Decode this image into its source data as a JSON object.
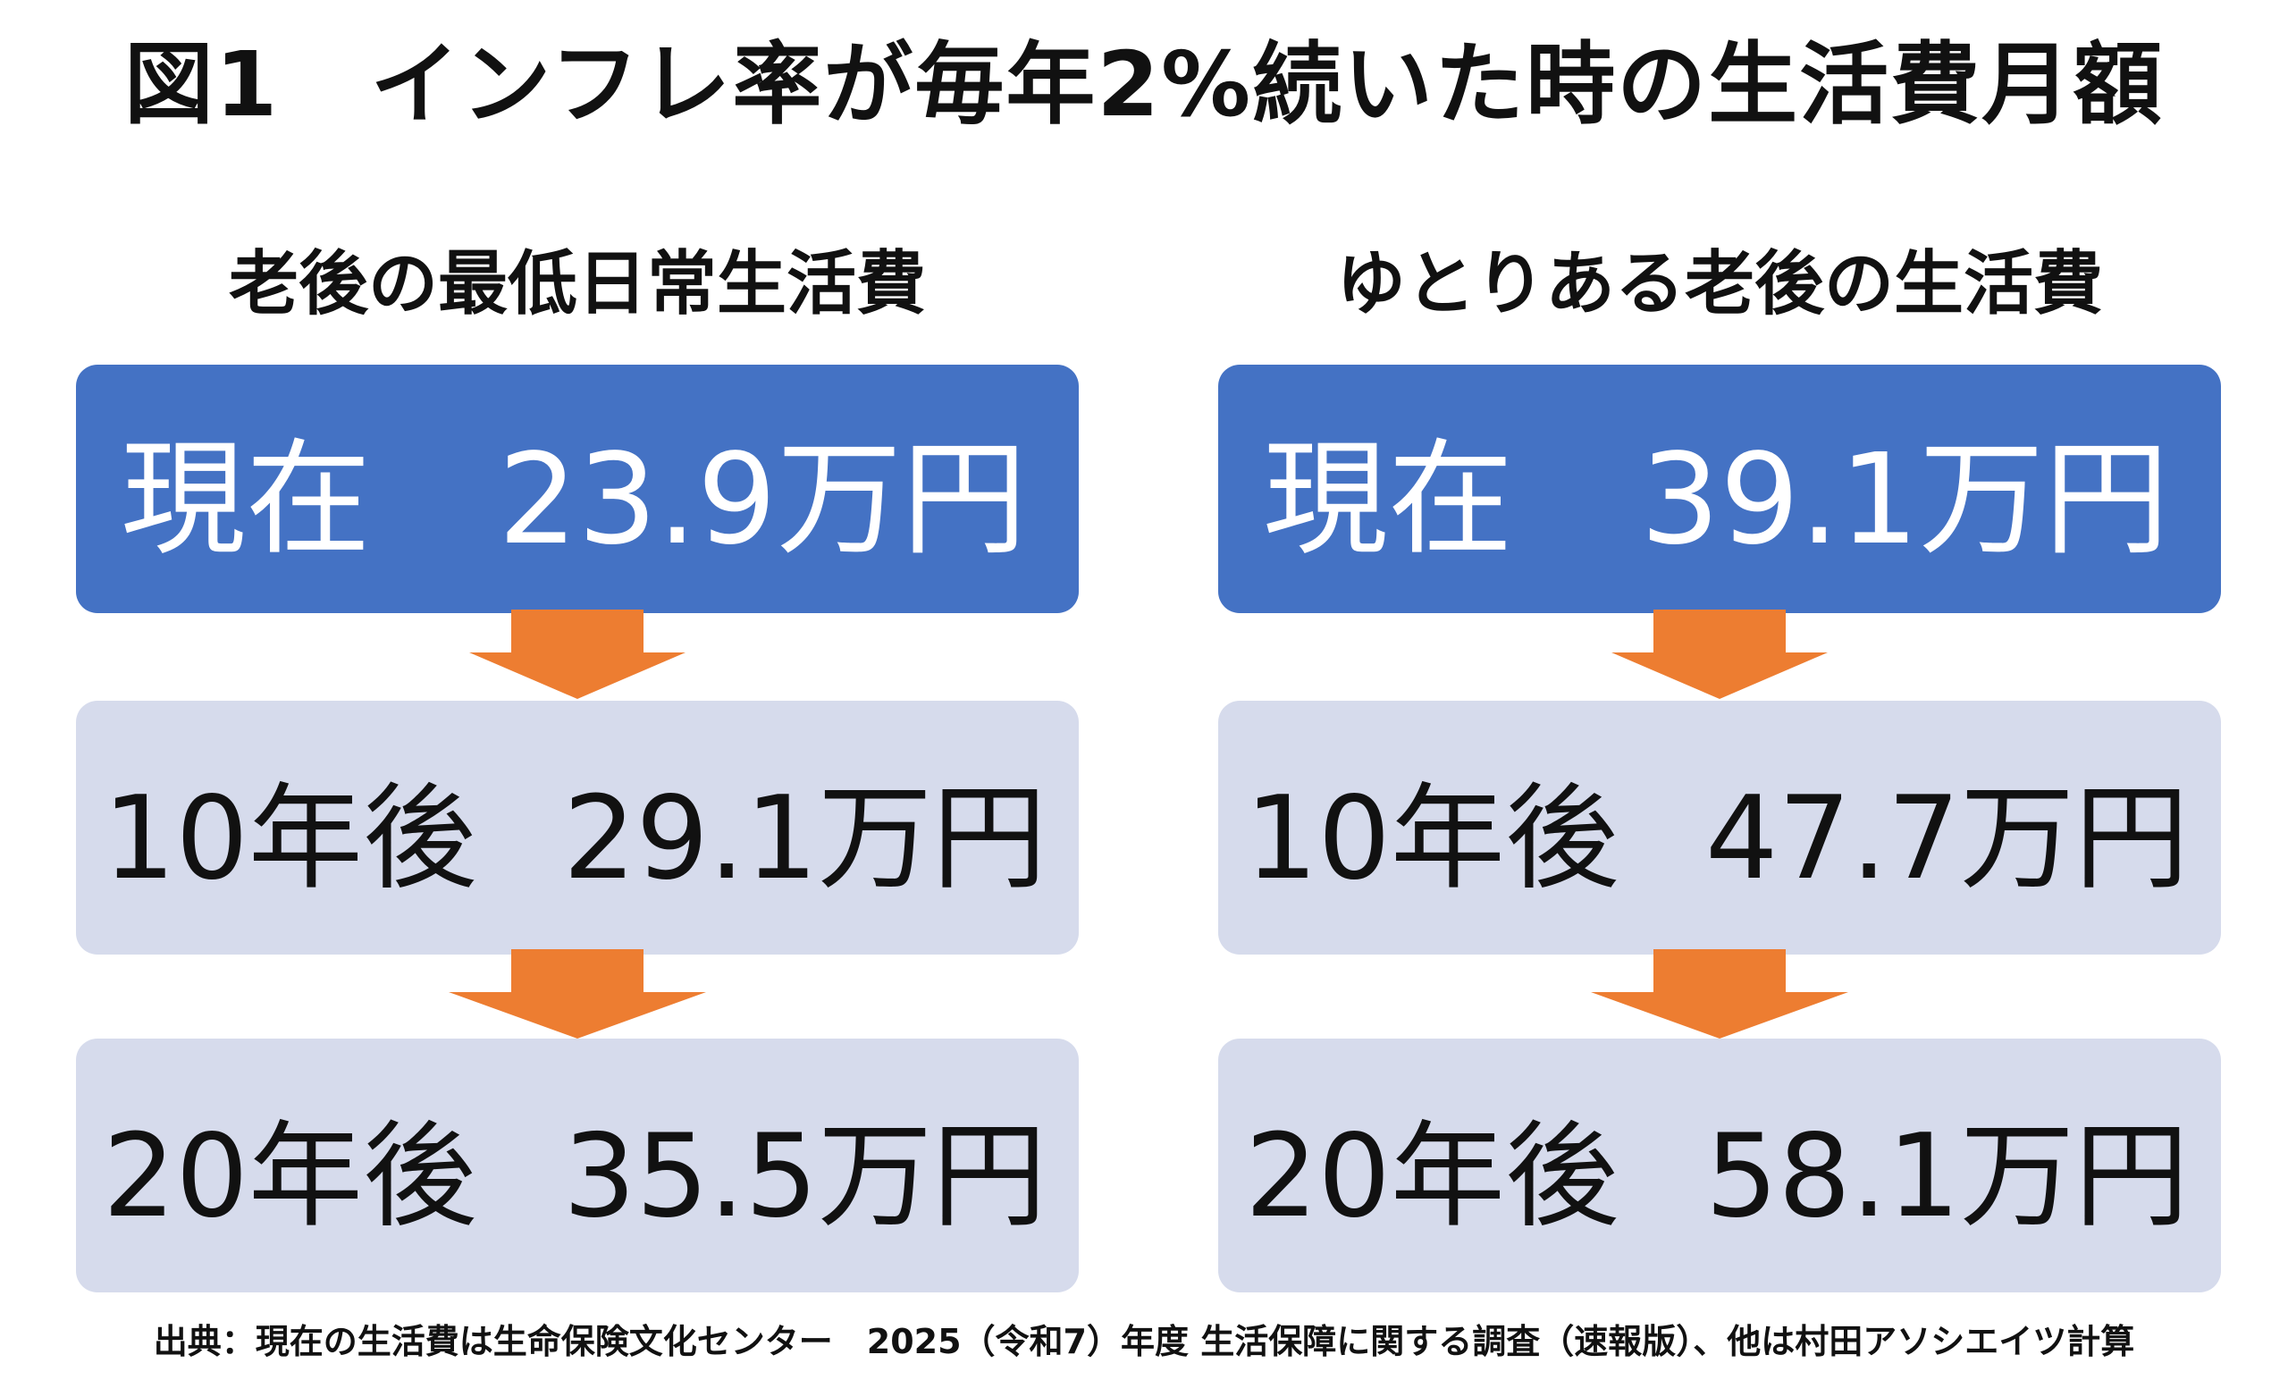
{
  "title": "図1　インフレ率が毎年2%続いた時の生活費月額",
  "colors": {
    "current_box": "#4472c4",
    "future_box": "#d6dbec",
    "arrow": "#ed7d31"
  },
  "columns": [
    {
      "heading": "老後の最低日常生活費",
      "current": {
        "label": "現在",
        "amount": "23.9万円"
      },
      "after10": {
        "label": "10年後",
        "amount": "29.1万円"
      },
      "after20": {
        "label": "20年後",
        "amount": "35.5万円"
      }
    },
    {
      "heading": "ゆとりある老後の生活費",
      "current": {
        "label": "現在",
        "amount": "39.1万円"
      },
      "after10": {
        "label": "10年後",
        "amount": "47.7万円"
      },
      "after20": {
        "label": "20年後",
        "amount": "58.1万円"
      }
    }
  ],
  "footnote": "出典：現在の生活費は生命保険文化センター　2025（令和7）年度 生活保障に関する調査（速報版）、他は村田アソシエイツ計算"
}
